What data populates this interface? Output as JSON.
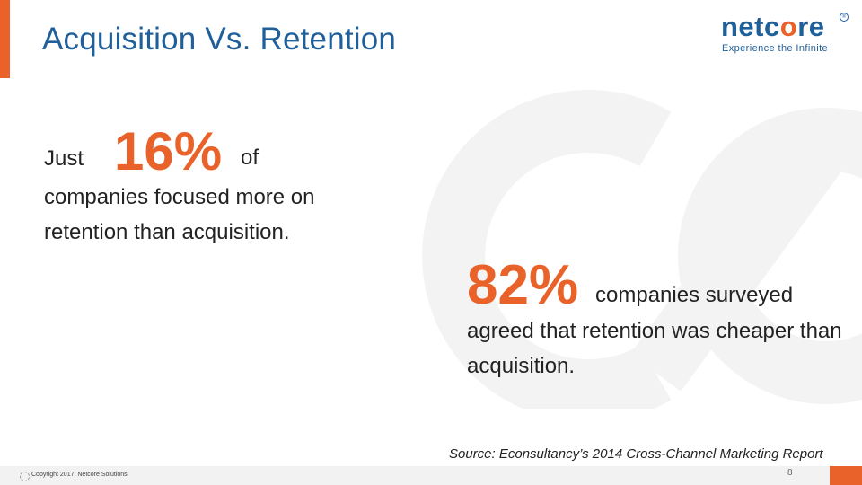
{
  "slide": {
    "title": "Acquisition Vs. Retention",
    "accent_color": "#e8622a",
    "title_color": "#1f5f9a"
  },
  "logo": {
    "word_part1": "netc",
    "word_part2": "o",
    "word_part3": "re",
    "tagline": "Experience the Infinite",
    "reg_mark": "®"
  },
  "stat1": {
    "pre": "Just",
    "value": "16%",
    "post": "of",
    "rest": "companies focused more on retention than acquisition."
  },
  "stat2": {
    "value": "82%",
    "post": "companies surveyed",
    "rest": "agreed that retention was cheaper than acquisition."
  },
  "source": "Source: Econsultancy’s 2014 Cross-Channel Marketing Report",
  "footer": {
    "copyright": "Copyright 2017. Netcore Solutions.",
    "page_number": "8"
  }
}
